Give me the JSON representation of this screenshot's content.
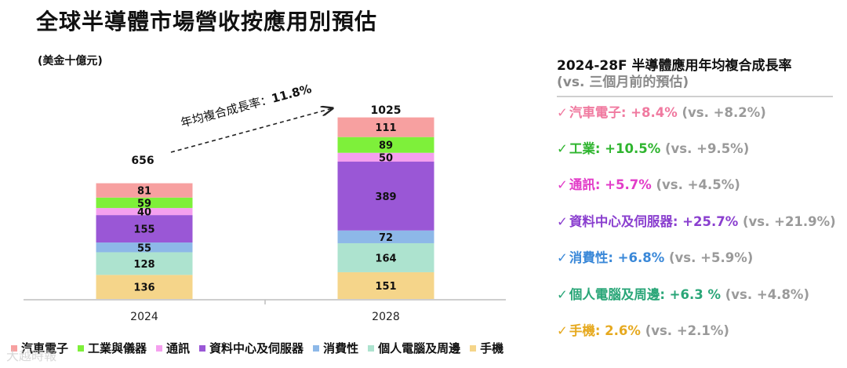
{
  "title": "全球半導體市場營收按應用別預估",
  "unit_label": "(美金十億元)",
  "chart_data": {
    "type": "bar",
    "stacked": true,
    "categories": [
      "2024",
      "2028"
    ],
    "totals": [
      "656",
      "1025"
    ],
    "series": [
      {
        "name": "手機",
        "color": "#f5d58a",
        "values": [
          136,
          151
        ]
      },
      {
        "name": "個人電腦及周邊",
        "color": "#ade3cf",
        "values": [
          128,
          164
        ]
      },
      {
        "name": "消費性",
        "color": "#8db8e8",
        "values": [
          55,
          72
        ]
      },
      {
        "name": "資料中心及伺服器",
        "color": "#9a57d6",
        "values": [
          155,
          389
        ]
      },
      {
        "name": "通訊",
        "color": "#f5a0ef",
        "values": [
          40,
          50
        ]
      },
      {
        "name": "工業與儀器",
        "color": "#7ef03a",
        "values": [
          59,
          89
        ]
      },
      {
        "name": "汽車電子",
        "color": "#f7a0a0",
        "values": [
          81,
          111
        ]
      }
    ],
    "annotation": {
      "text": "年均複合成長率：",
      "value": "11.8%"
    }
  },
  "legend": {
    "items": [
      {
        "label": "汽車電子",
        "color": "#f7a0a0"
      },
      {
        "label": "工業與儀器",
        "color": "#7ef03a"
      },
      {
        "label": "通訊",
        "color": "#f5a0ef"
      },
      {
        "label": "資料中心及伺服器",
        "color": "#9a57d6"
      },
      {
        "label": "消費性",
        "color": "#8db8e8"
      },
      {
        "label": "個人電腦及周邊",
        "color": "#ade3cf"
      },
      {
        "label": "手機",
        "color": "#f5d58a"
      }
    ]
  },
  "panel": {
    "title": "2024-28F 半導體應用年均複合成長率",
    "subtitle": "(vs. 三個月前的預估)",
    "rows": [
      {
        "check": "✓",
        "label": "汽車電子:",
        "value": "+8.4%",
        "prev": "(vs. +8.2%)",
        "color": "#f07aa0"
      },
      {
        "check": "✓",
        "label": "工業:",
        "value": "+10.5%",
        "prev": "(vs. +9.5%)",
        "color": "#2fb52f"
      },
      {
        "check": "✓",
        "label": "通訊:",
        "value": "+5.7%",
        "prev": "(vs. +4.5%)",
        "color": "#e23cc8"
      },
      {
        "check": "✓",
        "label": "資料中心及伺服器:",
        "value": "+25.7%",
        "prev": "(vs. +21.9%)",
        "color": "#8a3fcf"
      },
      {
        "check": "✓",
        "label": "消費性:",
        "value": "+6.8%",
        "prev": "(vs. +5.9%)",
        "color": "#3a88d8"
      },
      {
        "check": "✓",
        "label": "個人電腦及周邊:",
        "value": "+6.3 %",
        "prev": "(vs. +4.8%)",
        "color": "#2aa678"
      },
      {
        "check": "✓",
        "label": "手機:",
        "value": "2.6%",
        "prev": "(vs. +2.1%)",
        "color": "#e6a91f"
      }
    ]
  },
  "watermark": "大越時報"
}
